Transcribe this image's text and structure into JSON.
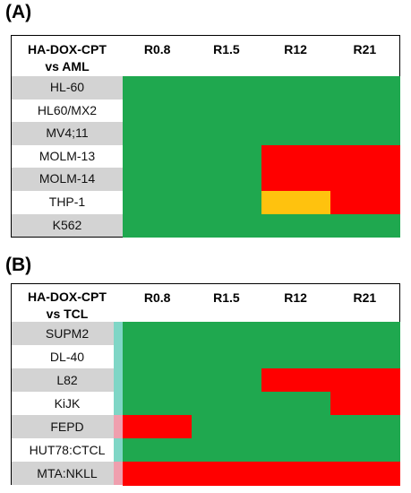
{
  "colors": {
    "green": "#1fa84f",
    "red": "#ff0000",
    "yellow": "#ffc20e",
    "gray_row": "#d3d3d3",
    "white_row": "#ffffff",
    "teal_edge": "#7fd6c6",
    "pink_edge": "#ef9fae"
  },
  "chart_data": [
    {
      "type": "heatmap",
      "panel": "(A)",
      "header_line1": "HA-DOX-CPT",
      "header_line2": "vs AML",
      "columns": [
        "R0.8",
        "R1.5",
        "R12",
        "R21"
      ],
      "rows": [
        "HL-60",
        "HL60/MX2",
        "MV4;11",
        "MOLM-13",
        "MOLM-14",
        "THP-1",
        "K562"
      ],
      "values": [
        [
          "green",
          "green",
          "green",
          "green"
        ],
        [
          "green",
          "green",
          "green",
          "green"
        ],
        [
          "green",
          "green",
          "green",
          "green"
        ],
        [
          "green",
          "green",
          "red",
          "red"
        ],
        [
          "green",
          "green",
          "red",
          "red"
        ],
        [
          "green",
          "green",
          "yellow",
          "red"
        ],
        [
          "green",
          "green",
          "green",
          "green"
        ]
      ]
    },
    {
      "type": "heatmap",
      "panel": "(B)",
      "header_line1": "HA-DOX-CPT",
      "header_line2": "vs TCL",
      "columns": [
        "R0.8",
        "R1.5",
        "R12",
        "R21"
      ],
      "rows": [
        "SUPM2",
        "DL-40",
        "L82",
        "KiJK",
        "FEPD",
        "HUT78:CTCL",
        "MTA:NKLL"
      ],
      "values": [
        [
          "green",
          "green",
          "green",
          "green"
        ],
        [
          "green",
          "green",
          "green",
          "green"
        ],
        [
          "green",
          "green",
          "red",
          "red"
        ],
        [
          "green",
          "green",
          "green",
          "red"
        ],
        [
          "red",
          "green",
          "green",
          "green"
        ],
        [
          "green",
          "green",
          "green",
          "green"
        ],
        [
          "red",
          "red",
          "red",
          "red"
        ]
      ]
    }
  ]
}
